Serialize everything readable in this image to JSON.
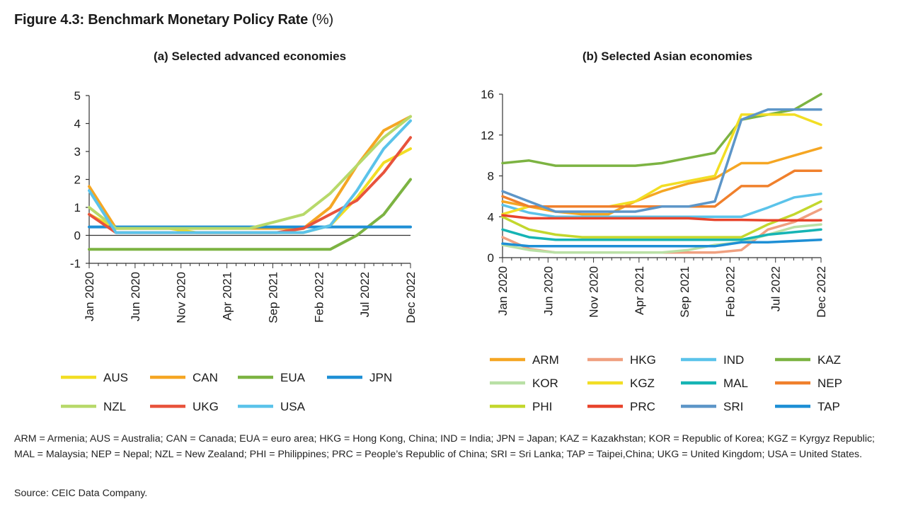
{
  "figure": {
    "title": "Figure 4.3: Benchmark Monetary Policy Rate",
    "title_unit": "(%)",
    "footnote": "ARM = Armenia; AUS = Australia; CAN = Canada; EUA = euro area; HKG = Hong Kong, China; IND = India; JPN = Japan; KAZ = Kazakhstan; KOR = Republic of Korea; KGZ = Kyrgyz Republic; MAL = Malaysia; NEP = Nepal; NZL = New Zealand; PHI = Philippines; PRC = People’s Republic of China; SRI = Sri Lanka; TAP = Taipei,China; UKG = United Kingdom; USA = United States.",
    "source": "Source: CEIC Data Company."
  },
  "chart_data": [
    {
      "type": "line",
      "title": "(a) Selected advanced economies",
      "x": [
        "Jan 2020",
        "Apr 2020",
        "Jul 2020",
        "Oct 2020",
        "Jan 2021",
        "Apr 2021",
        "Jul 2021",
        "Oct 2021",
        "Jan 2022",
        "Apr 2022",
        "Jul 2022",
        "Oct 2022",
        "Dec 2022"
      ],
      "x_tick_labels": [
        "Jan 2020",
        "Jun 2020",
        "Nov 2020",
        "Apr 2021",
        "Sep 2021",
        "Feb 2022",
        "Jul 2022",
        "Dec 2022"
      ],
      "ylim": [
        -1,
        5
      ],
      "y_ticks": [
        "-1",
        "0",
        "1",
        "2",
        "3",
        "4",
        "5"
      ],
      "series": [
        {
          "name": "AUS",
          "color": "#f2de24",
          "values": [
            0.75,
            0.25,
            0.25,
            0.25,
            0.1,
            0.1,
            0.1,
            0.1,
            0.1,
            0.35,
            1.35,
            2.6,
            3.1
          ]
        },
        {
          "name": "CAN",
          "color": "#f5a623",
          "values": [
            1.75,
            0.25,
            0.25,
            0.25,
            0.25,
            0.25,
            0.25,
            0.25,
            0.25,
            1.0,
            2.5,
            3.75,
            4.25
          ]
        },
        {
          "name": "EUA",
          "color": "#7cb342",
          "values": [
            -0.5,
            -0.5,
            -0.5,
            -0.5,
            -0.5,
            -0.5,
            -0.5,
            -0.5,
            -0.5,
            -0.5,
            0.0,
            0.75,
            2.0
          ]
        },
        {
          "name": "JPN",
          "color": "#1e8fd5",
          "values": [
            0.3,
            0.3,
            0.3,
            0.3,
            0.3,
            0.3,
            0.3,
            0.3,
            0.3,
            0.3,
            0.3,
            0.3,
            0.3
          ]
        },
        {
          "name": "NZL",
          "color": "#b7d96a",
          "values": [
            1.0,
            0.25,
            0.25,
            0.25,
            0.25,
            0.25,
            0.25,
            0.5,
            0.75,
            1.5,
            2.5,
            3.5,
            4.25
          ]
        },
        {
          "name": "UKG",
          "color": "#e8533c",
          "values": [
            0.75,
            0.1,
            0.1,
            0.1,
            0.1,
            0.1,
            0.1,
            0.1,
            0.25,
            0.75,
            1.25,
            2.25,
            3.5
          ]
        },
        {
          "name": "USA",
          "color": "#5bc3ea",
          "values": [
            1.6,
            0.1,
            0.1,
            0.1,
            0.1,
            0.1,
            0.1,
            0.1,
            0.1,
            0.35,
            1.6,
            3.1,
            4.1
          ]
        }
      ]
    },
    {
      "type": "line",
      "title": "(b) Selected Asian economies",
      "x": [
        "Jan 2020",
        "Apr 2020",
        "Jul 2020",
        "Oct 2020",
        "Jan 2021",
        "Apr 2021",
        "Jul 2021",
        "Oct 2021",
        "Jan 2022",
        "Apr 2022",
        "Jul 2022",
        "Oct 2022",
        "Dec 2022"
      ],
      "x_tick_labels": [
        "Jan 2020",
        "Jun 2020",
        "Nov 2020",
        "Apr 2021",
        "Sep 2021",
        "Feb 2022",
        "Jul 2022",
        "Dec 2022"
      ],
      "ylim": [
        0,
        16
      ],
      "y_ticks": [
        "0",
        "4",
        "8",
        "12",
        "16"
      ],
      "series": [
        {
          "name": "ARM",
          "color": "#f5a623",
          "values": [
            5.5,
            5.0,
            4.5,
            4.25,
            4.25,
            5.5,
            6.5,
            7.25,
            7.75,
            9.25,
            9.25,
            10.0,
            10.75
          ]
        },
        {
          "name": "HKG",
          "color": "#f0a080",
          "values": [
            2.0,
            0.86,
            0.5,
            0.5,
            0.5,
            0.5,
            0.5,
            0.5,
            0.5,
            0.75,
            2.75,
            3.5,
            4.75
          ]
        },
        {
          "name": "IND",
          "color": "#5bc3ea",
          "values": [
            5.15,
            4.4,
            4.0,
            4.0,
            4.0,
            4.0,
            4.0,
            4.0,
            4.0,
            4.0,
            4.9,
            5.9,
            6.25
          ]
        },
        {
          "name": "KAZ",
          "color": "#7cb342",
          "values": [
            9.25,
            9.5,
            9.0,
            9.0,
            9.0,
            9.0,
            9.25,
            9.75,
            10.25,
            13.5,
            14.0,
            14.5,
            16.0
          ]
        },
        {
          "name": "KOR",
          "color": "#b9e0a5",
          "values": [
            1.25,
            0.75,
            0.5,
            0.5,
            0.5,
            0.5,
            0.5,
            0.75,
            1.25,
            1.5,
            2.25,
            3.0,
            3.25
          ]
        },
        {
          "name": "KGZ",
          "color": "#f2de24",
          "values": [
            4.25,
            5.0,
            5.0,
            5.0,
            5.0,
            5.5,
            7.0,
            7.5,
            8.0,
            14.0,
            14.0,
            14.0,
            13.0
          ]
        },
        {
          "name": "MAL",
          "color": "#16b4b4",
          "values": [
            2.75,
            2.0,
            1.75,
            1.75,
            1.75,
            1.75,
            1.75,
            1.75,
            1.75,
            1.75,
            2.25,
            2.5,
            2.75
          ]
        },
        {
          "name": "NEP",
          "color": "#f0802c",
          "values": [
            6.0,
            5.0,
            5.0,
            5.0,
            5.0,
            5.0,
            5.0,
            5.0,
            5.0,
            7.0,
            7.0,
            8.5,
            8.5
          ]
        },
        {
          "name": "PHI",
          "color": "#c3d72d",
          "values": [
            4.0,
            2.75,
            2.25,
            2.0,
            2.0,
            2.0,
            2.0,
            2.0,
            2.0,
            2.0,
            3.25,
            4.25,
            5.5
          ]
        },
        {
          "name": "PRC",
          "color": "#e8442c",
          "values": [
            4.15,
            3.85,
            3.85,
            3.85,
            3.85,
            3.85,
            3.85,
            3.85,
            3.7,
            3.7,
            3.65,
            3.65,
            3.65
          ]
        },
        {
          "name": "SRI",
          "color": "#5d96c8",
          "values": [
            6.5,
            5.5,
            4.5,
            4.5,
            4.5,
            4.5,
            5.0,
            5.0,
            5.5,
            13.5,
            14.5,
            14.5,
            14.5
          ]
        },
        {
          "name": "TAP",
          "color": "#1e8fd5",
          "values": [
            1.375,
            1.125,
            1.125,
            1.125,
            1.125,
            1.125,
            1.125,
            1.125,
            1.125,
            1.5,
            1.5,
            1.625,
            1.75
          ]
        }
      ]
    }
  ]
}
